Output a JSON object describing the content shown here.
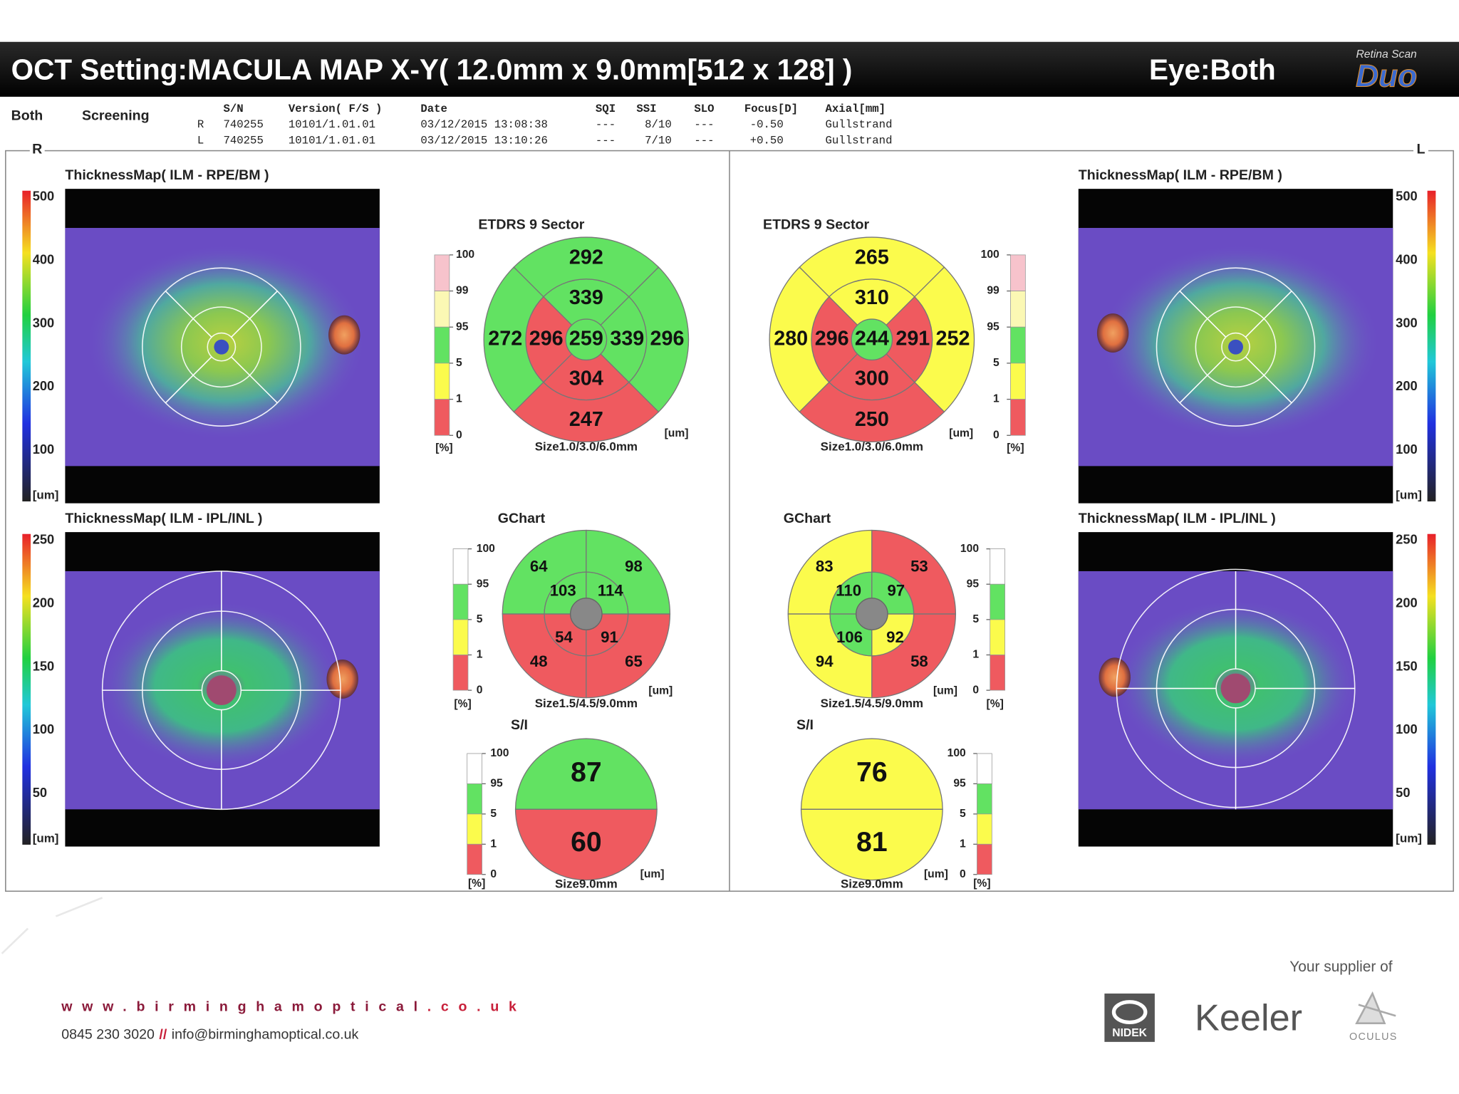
{
  "header": {
    "title": "OCT Setting:MACULA MAP X-Y( 12.0mm x 9.0mm[512 x 128] )",
    "eye": "Eye:Both",
    "logo_tagline": "Retina Scan",
    "logo_model": "Duo"
  },
  "info": {
    "mode": "Both",
    "type": "Screening",
    "columns": [
      "S/N",
      "Version( F/S )",
      "Date",
      "SQI",
      "SSI",
      "SLO",
      "Focus[D]",
      "Axial[mm]"
    ],
    "rows": [
      [
        "R",
        "740255",
        "10101/1.01.01",
        "03/12/2015 13:08:38",
        "---",
        "8/10",
        "---",
        "-0.50",
        "Gullstrand"
      ],
      [
        "L",
        "740255",
        "10101/1.01.01",
        "03/12/2015 13:10:26",
        "---",
        "7/10",
        "---",
        "+0.50",
        "Gullstrand"
      ]
    ]
  },
  "eyes": [
    {
      "side": "R",
      "maps": [
        {
          "title": "ThicknessMap( ILM - RPE/BM )",
          "scale": [
            500,
            400,
            300,
            200,
            100
          ],
          "unit": "[um]"
        },
        {
          "title": "ThicknessMap( ILM - IPL/INL )",
          "scale": [
            250,
            200,
            150,
            100,
            50
          ],
          "unit": "[um]"
        }
      ],
      "etdrs": {
        "title": "ETDRS 9 Sector",
        "sectors": [
          {
            "value": 259,
            "color": "#62e262"
          },
          {
            "value": 339,
            "color": "#62e262"
          },
          {
            "value": 296,
            "color": "#ef5a5f"
          },
          {
            "value": 339,
            "color": "#62e262"
          },
          {
            "value": 304,
            "color": "#ef5a5f"
          },
          {
            "value": 292,
            "color": "#62e262"
          },
          {
            "value": 272,
            "color": "#62e262"
          },
          {
            "value": 296,
            "color": "#62e262"
          },
          {
            "value": 247,
            "color": "#ef5a5f"
          }
        ],
        "unit": "[um]",
        "size": "Size1.0/3.0/6.0mm",
        "legend": {
          "ticks": [
            100,
            99,
            95,
            5,
            1,
            0
          ],
          "colors": [
            "#f7c3cc",
            "#fbf8b4",
            "#62e262",
            "#fbfb4c",
            "#ef5a5f"
          ],
          "unit": "[%]"
        }
      },
      "gchart": {
        "title": "GChart",
        "sectors": [
          {
            "value": 64,
            "color": "#62e262"
          },
          {
            "value": 98,
            "color": "#62e262"
          },
          {
            "value": 48,
            "color": "#ef5a5f"
          },
          {
            "value": 65,
            "color": "#ef5a5f"
          },
          {
            "value": 103,
            "color": "#62e262"
          },
          {
            "value": 114,
            "color": "#62e262"
          },
          {
            "value": 54,
            "color": "#ef5a5f"
          },
          {
            "value": 91,
            "color": "#ef5a5f"
          }
        ],
        "unit": "[um]",
        "size": "Size1.5/4.5/9.0mm",
        "legend": {
          "ticks": [
            100,
            95,
            5,
            1,
            0
          ],
          "colors": [
            "#ffffff",
            "#62e262",
            "#fbfb4c",
            "#ef5a5f"
          ],
          "unit": "[%]"
        }
      },
      "si": {
        "title": "S/I",
        "sectors": [
          {
            "value": 87,
            "color": "#62e262"
          },
          {
            "value": 60,
            "color": "#ef5a5f"
          }
        ],
        "unit": "[um]",
        "size": "Size9.0mm",
        "legend": {
          "ticks": [
            100,
            95,
            5,
            1,
            0
          ],
          "colors": [
            "#ffffff",
            "#62e262",
            "#fbfb4c",
            "#ef5a5f"
          ],
          "unit": "[%]"
        }
      }
    },
    {
      "side": "L",
      "maps": [
        {
          "title": "ThicknessMap( ILM - RPE/BM )",
          "scale": [
            500,
            400,
            300,
            200,
            100
          ],
          "unit": "[um]"
        },
        {
          "title": "ThicknessMap( ILM - IPL/INL )",
          "scale": [
            250,
            200,
            150,
            100,
            50
          ],
          "unit": "[um]"
        }
      ],
      "etdrs": {
        "title": "ETDRS 9 Sector",
        "sectors": [
          {
            "value": 244,
            "color": "#62e262"
          },
          {
            "value": 310,
            "color": "#fbfb4c"
          },
          {
            "value": 296,
            "color": "#ef5a5f"
          },
          {
            "value": 291,
            "color": "#ef5a5f"
          },
          {
            "value": 300,
            "color": "#ef5a5f"
          },
          {
            "value": 265,
            "color": "#fbfb4c"
          },
          {
            "value": 280,
            "color": "#fbfb4c"
          },
          {
            "value": 252,
            "color": "#fbfb4c"
          },
          {
            "value": 250,
            "color": "#ef5a5f"
          }
        ],
        "unit": "[um]",
        "size": "Size1.0/3.0/6.0mm",
        "legend": {
          "ticks": [
            100,
            99,
            95,
            5,
            1,
            0
          ],
          "colors": [
            "#f7c3cc",
            "#fbf8b4",
            "#62e262",
            "#fbfb4c",
            "#ef5a5f"
          ],
          "unit": "[%]"
        }
      },
      "gchart": {
        "title": "GChart",
        "sectors": [
          {
            "value": 83,
            "color": "#fbfb4c"
          },
          {
            "value": 53,
            "color": "#ef5a5f"
          },
          {
            "value": 94,
            "color": "#fbfb4c"
          },
          {
            "value": 58,
            "color": "#ef5a5f"
          },
          {
            "value": 110,
            "color": "#62e262"
          },
          {
            "value": 97,
            "color": "#62e262"
          },
          {
            "value": 106,
            "color": "#62e262"
          },
          {
            "value": 92,
            "color": "#fbfb4c"
          }
        ],
        "unit": "[um]",
        "size": "Size1.5/4.5/9.0mm",
        "legend": {
          "ticks": [
            100,
            95,
            5,
            1,
            0
          ],
          "colors": [
            "#ffffff",
            "#62e262",
            "#fbfb4c",
            "#ef5a5f"
          ],
          "unit": "[%]"
        }
      },
      "si": {
        "title": "S/I",
        "sectors": [
          {
            "value": 76,
            "color": "#fbfb4c"
          },
          {
            "value": 81,
            "color": "#fbfb4c"
          }
        ],
        "unit": "[um]",
        "size": "Size9.0mm",
        "legend": {
          "ticks": [
            100,
            95,
            5,
            1,
            0
          ],
          "colors": [
            "#ffffff",
            "#62e262",
            "#fbfb4c",
            "#ef5a5f"
          ],
          "unit": "[%]"
        }
      }
    }
  ],
  "footer": {
    "website_main": "www.birminghamoptical",
    "website_tld": ".co.uk",
    "phone": "0845 230 3020",
    "separator": "//",
    "email": "info@birminghamoptical.co.uk",
    "supplier": "Your supplier of",
    "brands": [
      "NIDEK",
      "Keeler",
      "OCULUS"
    ]
  }
}
